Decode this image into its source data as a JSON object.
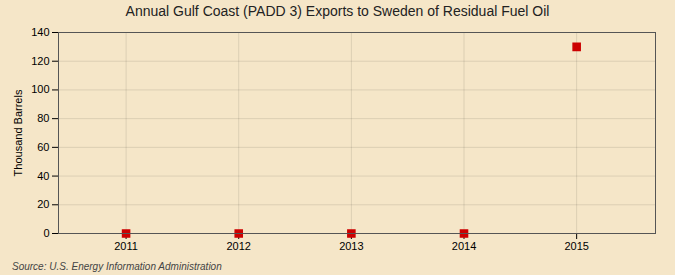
{
  "chart_data": {
    "type": "scatter",
    "title": "Annual Gulf Coast (PADD 3) Exports to Sweden of Residual Fuel Oil",
    "ylabel": "Thousand Barrels",
    "source": "Source: U.S. Energy Information Administration",
    "x": [
      2011,
      2012,
      2013,
      2014,
      2015
    ],
    "values": [
      0,
      0,
      0,
      0,
      130
    ],
    "color": "#cc0000",
    "marker": "square",
    "xlim": [
      2010.4,
      2015.7
    ],
    "ylim": [
      0,
      140
    ],
    "xticks": [
      2011,
      2012,
      2013,
      2014,
      2015
    ],
    "yticks": [
      0,
      20,
      40,
      60,
      80,
      100,
      120,
      140
    ],
    "grid": true
  }
}
